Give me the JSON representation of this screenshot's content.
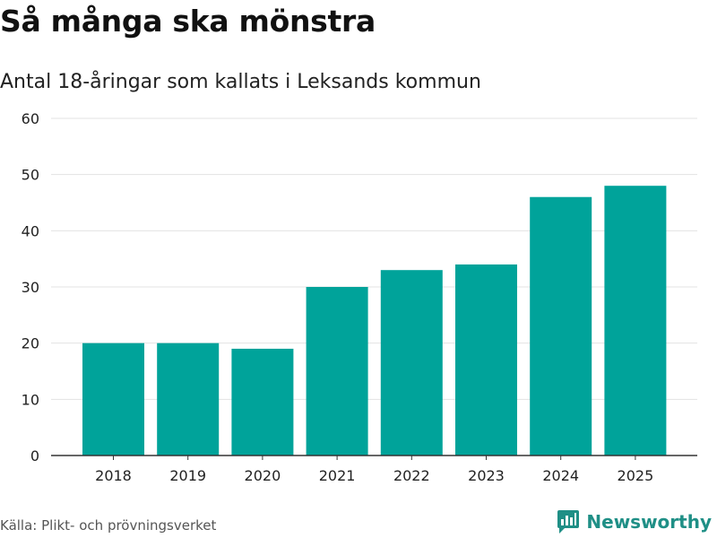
{
  "title": "Så många ska mönstra",
  "subtitle": "Antal 18-åringar som kallats i Leksands kommun",
  "source": "Källa: Plikt- och prövningsverket",
  "brand": {
    "name": "Newsworthy",
    "icon": "newsworthy-logo-icon",
    "color": "#1f8f86"
  },
  "colors": {
    "bar": "#00a39a",
    "grid": "#e3e3e3",
    "axis": "#333333"
  },
  "chart_data": {
    "type": "bar",
    "title": "Så många ska mönstra",
    "subtitle": "Antal 18-åringar som kallats i Leksands kommun",
    "xlabel": "",
    "ylabel": "",
    "categories": [
      "2018",
      "2019",
      "2020",
      "2021",
      "2022",
      "2023",
      "2024",
      "2025"
    ],
    "values": [
      20,
      20,
      19,
      30,
      33,
      34,
      46,
      48
    ],
    "yticks": [
      0,
      10,
      20,
      30,
      40,
      50,
      60
    ],
    "ylim": [
      0,
      60
    ],
    "grid": true
  }
}
